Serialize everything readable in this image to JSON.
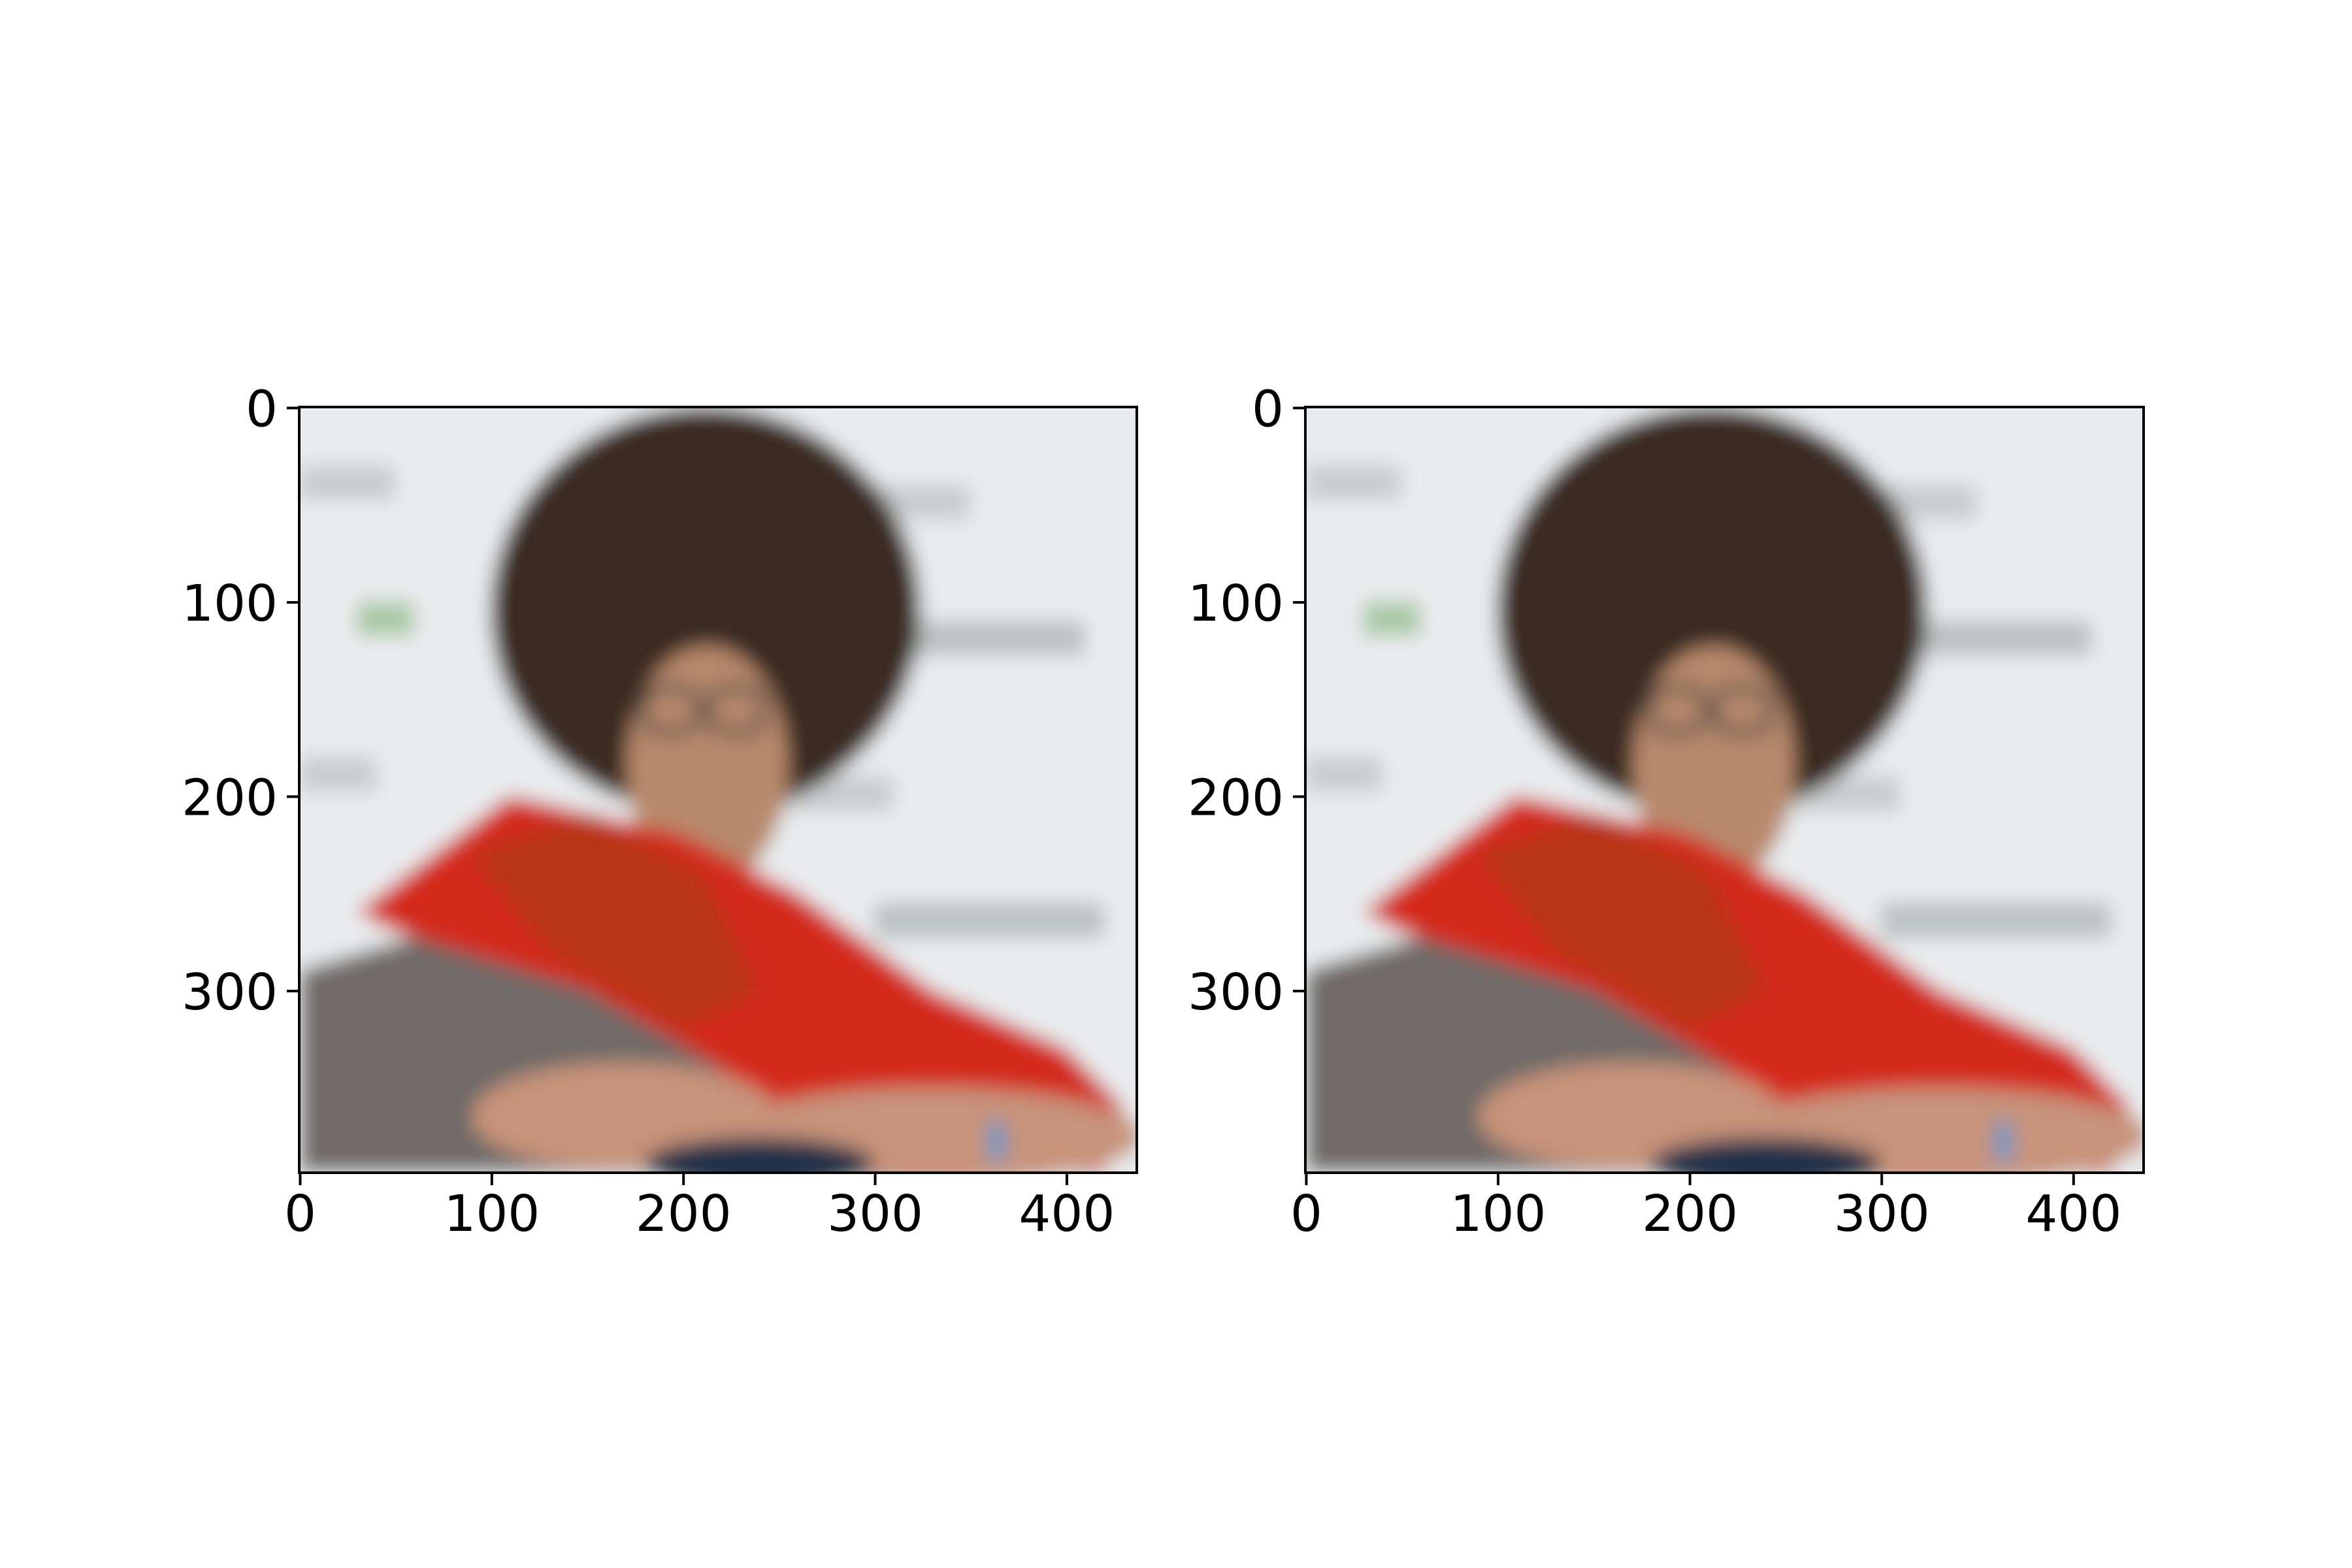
{
  "chart_data": [
    {
      "type": "image",
      "xlim": [
        -0.5,
        436.5
      ],
      "ylim": [
        393.5,
        -0.5
      ],
      "xticks": [
        0,
        100,
        200,
        300,
        400
      ],
      "yticks": [
        0,
        100,
        200,
        300
      ]
    },
    {
      "type": "image",
      "xlim": [
        -0.5,
        436.5
      ],
      "ylim": [
        393.5,
        -0.5
      ],
      "xticks": [
        0,
        100,
        200,
        300,
        400
      ],
      "yticks": [
        0,
        100,
        200,
        300
      ]
    }
  ]
}
